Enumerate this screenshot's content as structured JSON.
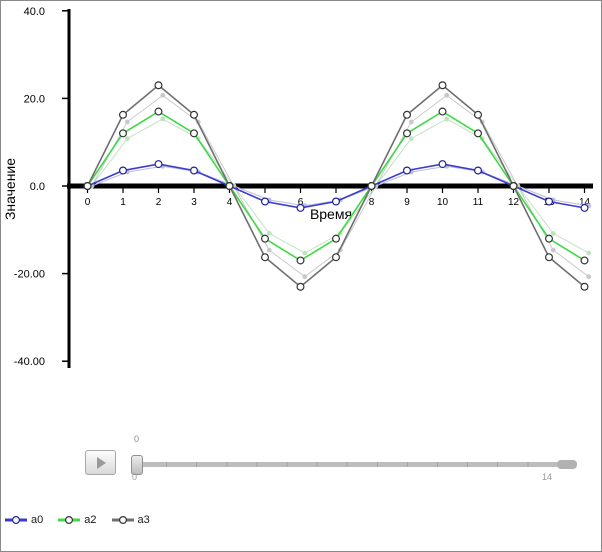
{
  "chart_data": {
    "type": "line",
    "xlabel": "Время",
    "ylabel": "Значение",
    "xlim": [
      0,
      14
    ],
    "ylim": [
      -40,
      40
    ],
    "grid": false,
    "legend_position": "bottom-left",
    "x": [
      0,
      1,
      2,
      3,
      4,
      5,
      6,
      7,
      8,
      9,
      10,
      11,
      12,
      13,
      14
    ],
    "xticks": [
      "0",
      "1",
      "2",
      "3",
      "4",
      "5",
      "6",
      "7",
      "8",
      "9",
      "10",
      "11",
      "12",
      "13",
      "14"
    ],
    "yticks": [
      {
        "label": "40.0",
        "value": 40
      },
      {
        "label": "20.0",
        "value": 20
      },
      {
        "label": "0.0",
        "value": 0
      },
      {
        "label": "-20.00",
        "value": -20
      },
      {
        "label": "-40.00",
        "value": -40
      }
    ],
    "series": [
      {
        "name": "a0",
        "color": "#3b3bd1",
        "marker_stroke": "#23238f",
        "ghost_color": "#bcbcdf",
        "values": [
          0,
          3.54,
          5,
          3.54,
          0,
          -3.54,
          -5,
          -3.54,
          0,
          3.54,
          5,
          3.54,
          0,
          -3.54,
          -5
        ]
      },
      {
        "name": "a2",
        "color": "#3fd946",
        "marker_stroke": "#333333",
        "ghost_color": "#bfe3c0",
        "values": [
          0,
          12.02,
          17,
          12.02,
          0,
          -12.02,
          -17,
          -12.02,
          0,
          12.02,
          17,
          12.02,
          0,
          -12.02,
          -17
        ]
      },
      {
        "name": "a3",
        "color": "#6f6f6f",
        "marker_stroke": "#333333",
        "ghost_color": "#c9c9c9",
        "values": [
          0,
          16.26,
          23,
          16.26,
          0,
          -16.26,
          -23,
          -16.26,
          0,
          16.26,
          23,
          16.26,
          0,
          -16.26,
          -23
        ]
      }
    ]
  },
  "controls": {
    "icons": {
      "play": "play-triangle"
    },
    "slider": {
      "value": 0,
      "min": 0,
      "max": 14,
      "value_label": "0",
      "min_label": "0",
      "max_label": "14"
    }
  }
}
